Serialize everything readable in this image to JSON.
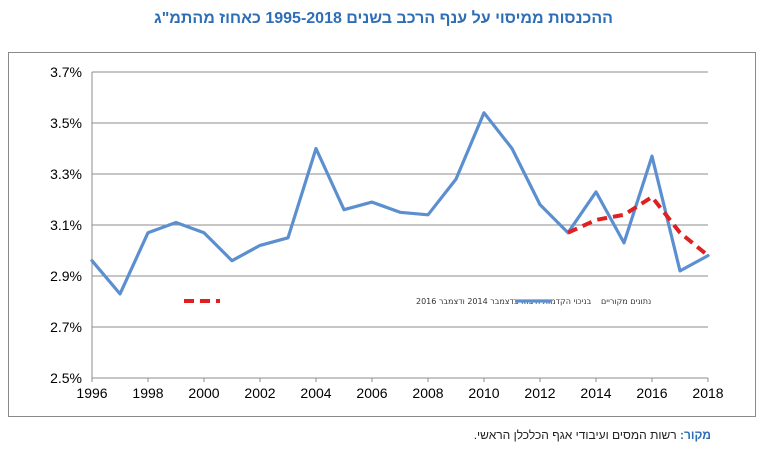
{
  "page": {
    "title": "ההכנסות ממיסוי על ענף הרכב בשנים 1995-2018 כאחוז מהתמ\"ג",
    "source_label": "מקור:",
    "source_text": "רשות המסים ועיבודי אגף הכלכלן הראשי."
  },
  "chart_data": {
    "type": "line",
    "title": "ההכנסות ממיסוי על ענף הרכב בשנים 1995-2018 כאחוז מהתמ\"ג",
    "xlabel": "",
    "ylabel": "",
    "xlim": [
      1996,
      2018
    ],
    "ylim": [
      2.5,
      3.7
    ],
    "x_ticks": [
      1996,
      1998,
      2000,
      2002,
      2004,
      2006,
      2008,
      2010,
      2012,
      2014,
      2016,
      2018
    ],
    "y_ticks": [
      2.5,
      2.7,
      2.9,
      3.1,
      3.3,
      3.5,
      3.7
    ],
    "y_tick_labels": [
      "2.5%",
      "2.7%",
      "2.9%",
      "3.1%",
      "3.3%",
      "3.5%",
      "3.7%"
    ],
    "grid": "horizontal",
    "legend_position": "lower-middle",
    "series": [
      {
        "name": "נתונים מקוריים",
        "color": "#5b8fd0",
        "style": "solid",
        "x": [
          1996,
          1997,
          1998,
          1999,
          2000,
          2001,
          2002,
          2003,
          2004,
          2005,
          2006,
          2007,
          2008,
          2009,
          2010,
          2011,
          2012,
          2013,
          2014,
          2015,
          2016,
          2017,
          2018
        ],
        "y": [
          2.96,
          2.83,
          3.07,
          3.11,
          3.07,
          2.96,
          3.02,
          3.05,
          3.4,
          3.16,
          3.19,
          3.15,
          3.14,
          3.28,
          3.54,
          3.4,
          3.18,
          3.07,
          3.23,
          3.03,
          3.37,
          2.92,
          2.98
        ]
      },
      {
        "name": "בניכוי הקדמות היבוא בדצמבר 2014 ודצמבר 2016",
        "color": "#e02020",
        "style": "dashed",
        "x": [
          2013,
          2014,
          2015,
          2016,
          2017,
          2018
        ],
        "y": [
          3.07,
          3.12,
          3.14,
          3.21,
          3.07,
          2.98
        ]
      }
    ]
  }
}
